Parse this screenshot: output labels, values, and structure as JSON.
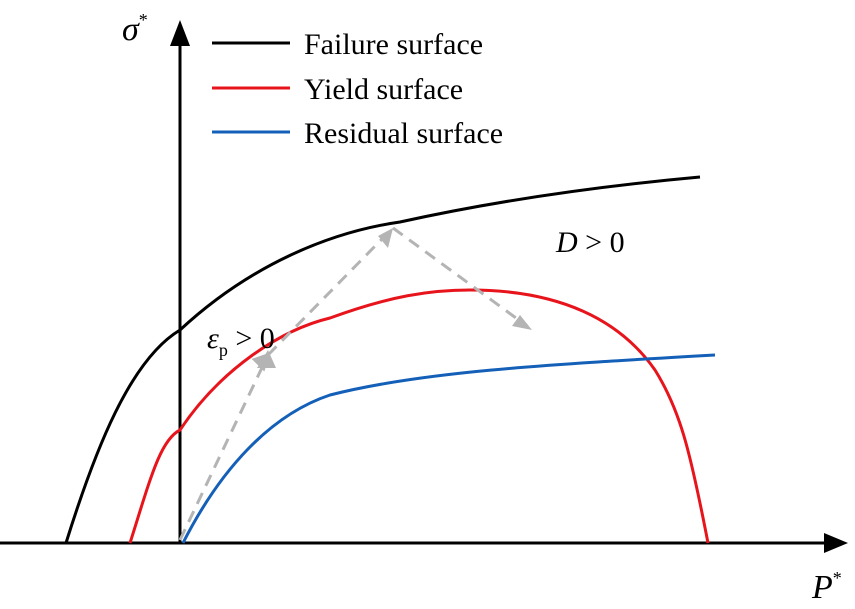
{
  "legend": [
    {
      "label": "Failure surface",
      "color": "#000000"
    },
    {
      "label": "Yield surface",
      "color": "#e8141c"
    },
    {
      "label": "Residual surface",
      "color": "#1460b8"
    }
  ],
  "axes": {
    "y": {
      "symbol": "σ",
      "superscript": "*"
    },
    "x": {
      "symbol": "P",
      "superscript": "*"
    }
  },
  "annotations": {
    "plastic_strain": {
      "symbol": "ε",
      "subscript": "p",
      "condition": " > 0"
    },
    "damage": {
      "symbol": "D",
      "condition": " > 0"
    }
  },
  "colors": {
    "axis": "#000000",
    "loading_path": "#b4b4b4"
  }
}
